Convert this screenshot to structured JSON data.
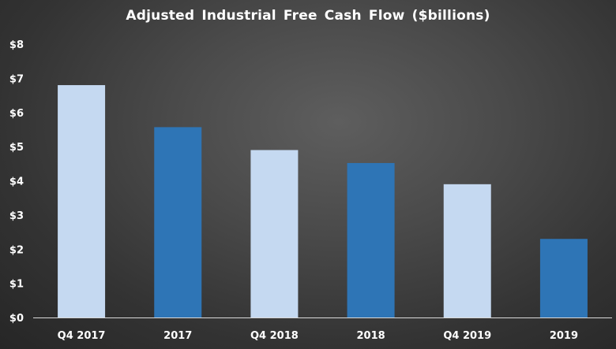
{
  "chart_data": {
    "type": "bar",
    "title": "Adjusted Industrial Free Cash Flow ($billions)",
    "xlabel": "",
    "ylabel": "",
    "categories": [
      "Q4 2017",
      "2017",
      "Q4 2018",
      "2018",
      "Q4 2019",
      "2019"
    ],
    "values": [
      6.8,
      5.57,
      4.9,
      4.52,
      3.9,
      2.3
    ],
    "ylim": [
      0,
      8
    ],
    "yticks": [
      0,
      1,
      2,
      3,
      4,
      5,
      6,
      7,
      8
    ],
    "ytick_labels": [
      "$0",
      "$1",
      "$2",
      "$3",
      "$4",
      "$5",
      "$6",
      "$7",
      "$8"
    ],
    "grid": false,
    "legend": "none",
    "colors": {
      "light_bar": "#c5d9f1",
      "dark_bar": "#2e75b6",
      "axis_line": "#d9d9d9",
      "text": "#ffffff"
    },
    "bar_colors": [
      "light_bar",
      "dark_bar",
      "light_bar",
      "dark_bar",
      "light_bar",
      "dark_bar"
    ]
  }
}
